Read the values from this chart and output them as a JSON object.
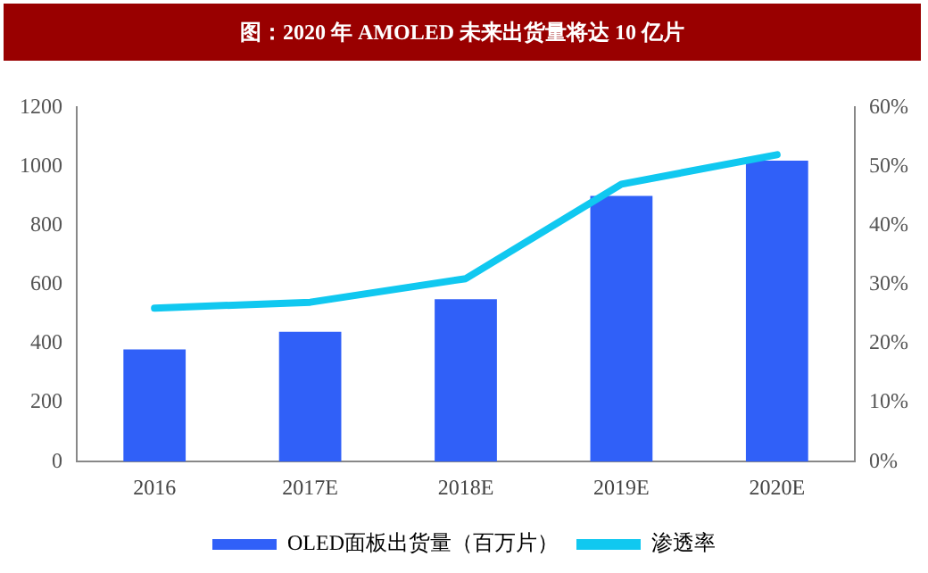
{
  "chart_data": {
    "type": "bar",
    "title": "图：2020 年 AMOLED 未来出货量将达 10 亿片",
    "categories": [
      "2016",
      "2017E",
      "2018E",
      "2019E",
      "2020E"
    ],
    "series": [
      {
        "name": "OLED面板出货量（百万片）",
        "color": "#3060f8",
        "values": [
          380,
          440,
          550,
          900,
          1020
        ]
      },
      {
        "name": "渗透率",
        "type": "line",
        "axis": "y2",
        "color": "#10c8f0",
        "values": [
          26,
          27,
          31,
          47,
          52
        ]
      }
    ],
    "ylim": [
      0,
      1200
    ],
    "yticks": [
      0,
      200,
      400,
      600,
      800,
      1000,
      1200
    ],
    "y2lim": [
      0,
      60
    ],
    "y2ticks": [
      {
        "value": 0,
        "label": "0%"
      },
      {
        "value": 10,
        "label": "10%"
      },
      {
        "value": 20,
        "label": "20%"
      },
      {
        "value": 30,
        "label": "30%"
      },
      {
        "value": 40,
        "label": "40%"
      },
      {
        "value": 50,
        "label": "50%"
      },
      {
        "value": 60,
        "label": "60%"
      }
    ],
    "grid": false,
    "legend": "bottom",
    "marker": "none"
  }
}
